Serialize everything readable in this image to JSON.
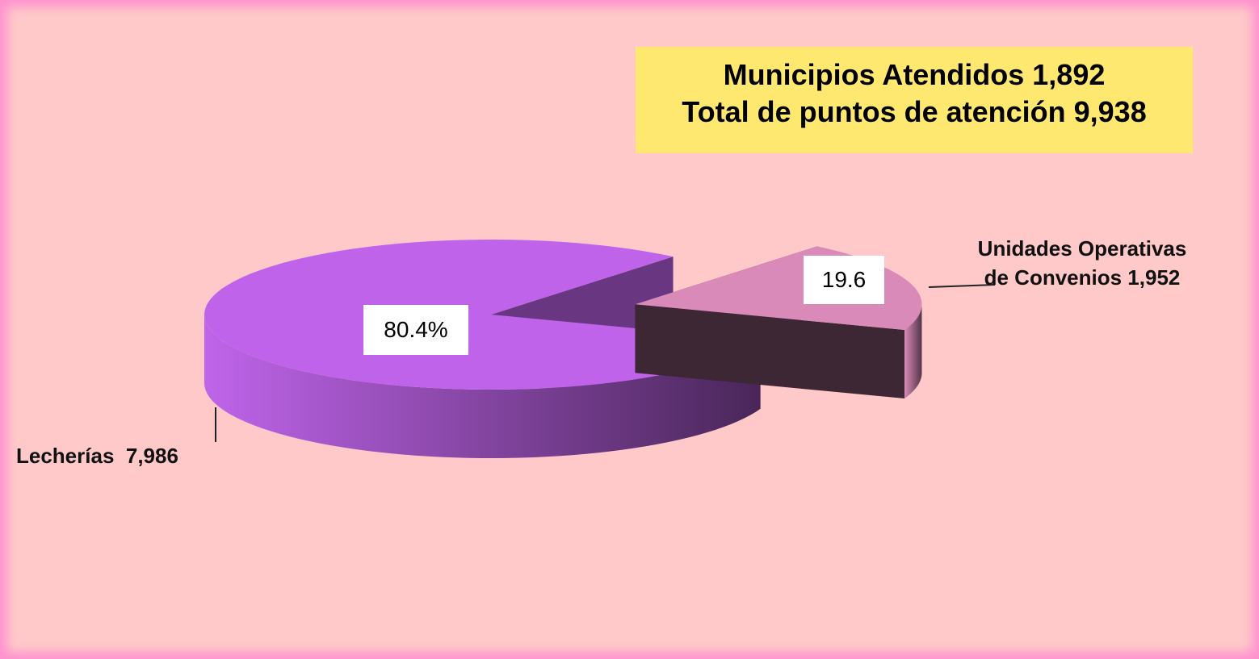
{
  "chart_data": {
    "type": "pie",
    "title": "Municipios Atendidos 1,892",
    "subtitle": "Total de puntos de atención 9,938",
    "categories": [
      "Lecherías  7,986",
      "Unidades Operativas de Convenios 1,952"
    ],
    "values": [
      80.4,
      19.6
    ],
    "value_labels": [
      "80.4%",
      "19.6"
    ],
    "colors": [
      "#bf64ea",
      "#d98ab8"
    ]
  }
}
